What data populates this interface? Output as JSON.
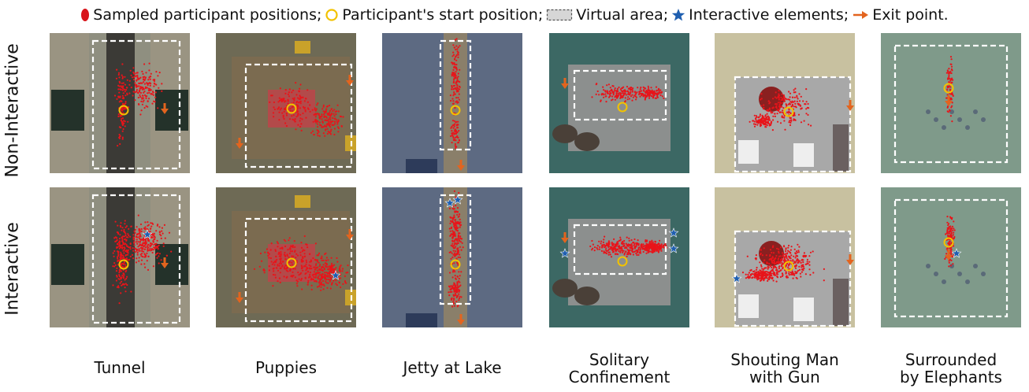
{
  "legend": [
    {
      "icon": "red-ellipse-icon",
      "label": "Sampled participant positions;"
    },
    {
      "icon": "yellow-circle-icon",
      "label": "Participant's start position;"
    },
    {
      "icon": "dashed-rectangle-icon",
      "label": "Virtual area;"
    },
    {
      "icon": "blue-star-icon",
      "label": "Interactive elements;"
    },
    {
      "icon": "orange-arrow-icon",
      "label": "Exit point."
    }
  ],
  "rows": [
    "Non-Interactive",
    "Interactive"
  ],
  "columns": [
    "Tunnel",
    "Puppies",
    "Jetty at Lake",
    "Solitary Confinement",
    "Shouting Man with Gun",
    "Surrounded by Elephants"
  ],
  "column_lines": [
    [
      "Tunnel"
    ],
    [
      "Puppies"
    ],
    [
      "Jetty at Lake"
    ],
    [
      "Solitary",
      "Confinement"
    ],
    [
      "Shouting Man",
      "with Gun"
    ],
    [
      "Surrounded",
      "by Elephants"
    ]
  ],
  "colors": {
    "samples": "#e8141a",
    "start": "#f2c200",
    "area": "#ffffff",
    "star": "#1f5fb0",
    "exit": "#e3641e"
  }
}
